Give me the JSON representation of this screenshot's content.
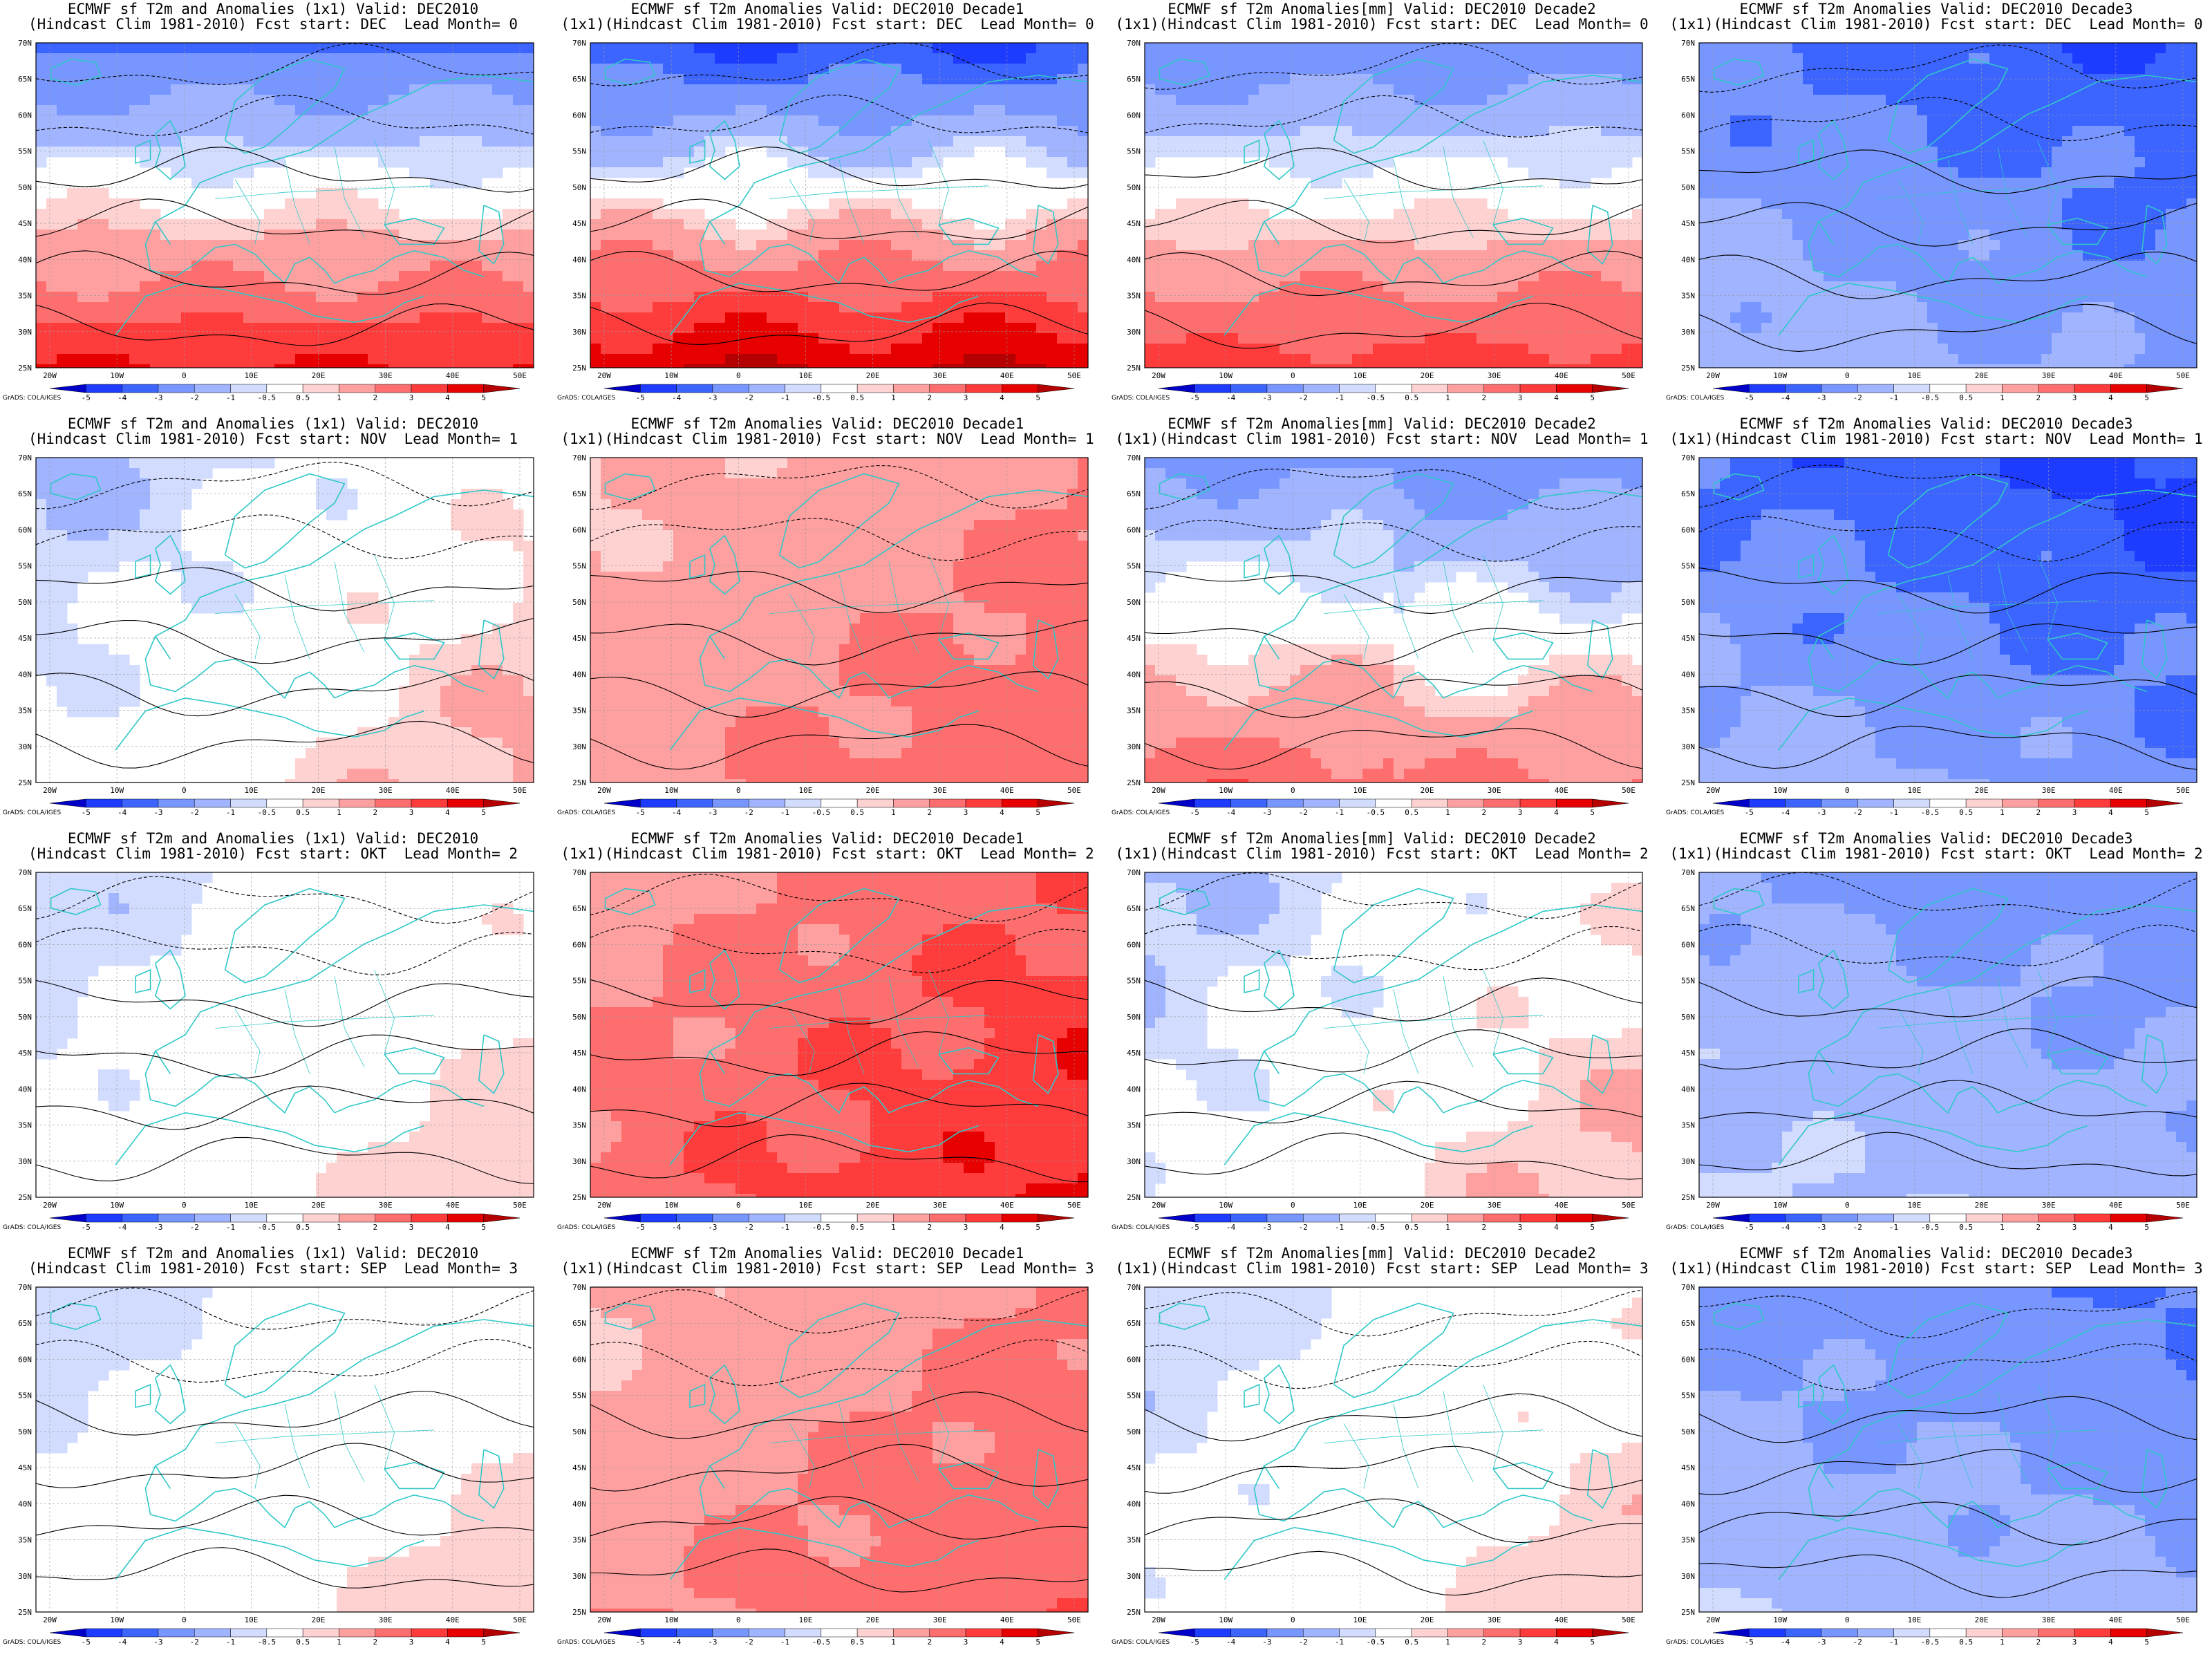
{
  "panels": [
    {
      "row": 0,
      "col": 0,
      "title1": "ECMWF sf T2m and Anomalies (1x1) Valid: DEC2010",
      "title2": "(Hindcast Clim 1981-2010) Fcst start: DEC  Lead Month= 0",
      "pattern": "cold-north-warm-south",
      "intensity": 0.8
    },
    {
      "row": 0,
      "col": 1,
      "title1": "ECMWF sf T2m Anomalies Valid: DEC2010 Decade1",
      "title2": "(1x1)(Hindcast Clim 1981-2010) Fcst start: DEC  Lead Month= 0",
      "pattern": "cold-north-warm-south",
      "intensity": 1.0
    },
    {
      "row": 0,
      "col": 2,
      "title1": "ECMWF sf T2m Anomalies[mm] Valid: DEC2010 Decade2",
      "title2": "(1x1)(Hindcast Clim 1981-2010) Fcst start: DEC  Lead Month= 0",
      "pattern": "cold-north-warm-south",
      "intensity": 0.7
    },
    {
      "row": 0,
      "col": 3,
      "title1": "ECMWF sf T2m Anomalies Valid: DEC2010 Decade3",
      "title2": "(1x1)(Hindcast Clim 1981-2010) Fcst start: DEC  Lead Month= 0",
      "pattern": "cold-all",
      "intensity": 0.9
    },
    {
      "row": 1,
      "col": 0,
      "title1": "ECMWF sf T2m and Anomalies (1x1) Valid: DEC2010",
      "title2": "(Hindcast Clim 1981-2010) Fcst start: NOV  Lead Month= 1",
      "pattern": "mild-mixed",
      "intensity": 0.5
    },
    {
      "row": 1,
      "col": 1,
      "title1": "ECMWF sf T2m Anomalies Valid: DEC2010 Decade1",
      "title2": "(1x1)(Hindcast Clim 1981-2010) Fcst start: NOV  Lead Month= 1",
      "pattern": "warm-all",
      "intensity": 0.55
    },
    {
      "row": 1,
      "col": 2,
      "title1": "ECMWF sf T2m Anomalies[mm] Valid: DEC2010 Decade2",
      "title2": "(1x1)(Hindcast Clim 1981-2010) Fcst start: NOV  Lead Month= 1",
      "pattern": "cold-northeast-warm-southeast",
      "intensity": 0.8
    },
    {
      "row": 1,
      "col": 3,
      "title1": "ECMWF sf T2m Anomalies Valid: DEC2010 Decade3",
      "title2": "(1x1)(Hindcast Clim 1981-2010) Fcst start: NOV  Lead Month= 1",
      "pattern": "cold-all",
      "intensity": 1.0
    },
    {
      "row": 2,
      "col": 0,
      "title1": "ECMWF sf T2m and Anomalies (1x1) Valid: DEC2010",
      "title2": "(Hindcast Clim 1981-2010) Fcst start: OKT  Lead Month= 2",
      "pattern": "mild-mixed",
      "intensity": 0.4
    },
    {
      "row": 2,
      "col": 1,
      "title1": "ECMWF sf T2m Anomalies Valid: DEC2010 Decade1",
      "title2": "(1x1)(Hindcast Clim 1981-2010) Fcst start: OKT  Lead Month= 2",
      "pattern": "warm-all",
      "intensity": 0.85
    },
    {
      "row": 2,
      "col": 2,
      "title1": "ECMWF sf T2m Anomalies[mm] Valid: DEC2010 Decade2",
      "title2": "(1x1)(Hindcast Clim 1981-2010) Fcst start: OKT  Lead Month= 2",
      "pattern": "mild-mixed",
      "intensity": 0.5
    },
    {
      "row": 2,
      "col": 3,
      "title1": "ECMWF sf T2m Anomalies Valid: DEC2010 Decade3",
      "title2": "(1x1)(Hindcast Clim 1981-2010) Fcst start: OKT  Lead Month= 2",
      "pattern": "cold-all",
      "intensity": 0.6
    },
    {
      "row": 3,
      "col": 0,
      "title1": "ECMWF sf T2m and Anomalies (1x1) Valid: DEC2010",
      "title2": "(Hindcast Clim 1981-2010) Fcst start: SEP  Lead Month= 3",
      "pattern": "mild-mixed",
      "intensity": 0.35
    },
    {
      "row": 3,
      "col": 1,
      "title1": "ECMWF sf T2m Anomalies Valid: DEC2010 Decade1",
      "title2": "(1x1)(Hindcast Clim 1981-2010) Fcst start: SEP  Lead Month= 3",
      "pattern": "warm-all",
      "intensity": 0.6
    },
    {
      "row": 3,
      "col": 2,
      "title1": "ECMWF sf T2m Anomalies[mm] Valid: DEC2010 Decade2",
      "title2": "(1x1)(Hindcast Clim 1981-2010) Fcst start: SEP  Lead Month= 3",
      "pattern": "mild-mixed",
      "intensity": 0.4
    },
    {
      "row": 3,
      "col": 3,
      "title1": "ECMWF sf T2m Anomalies Valid: DEC2010 Decade3",
      "title2": "(1x1)(Hindcast Clim 1981-2010) Fcst start: SEP  Lead Month= 3",
      "pattern": "cold-all",
      "intensity": 0.7
    }
  ],
  "lat_labels": [
    "70N",
    "65N",
    "60N",
    "55N",
    "50N",
    "45N",
    "40N",
    "35N",
    "30N",
    "25N"
  ],
  "lon_labels": [
    "20W",
    "10W",
    "0",
    "10E",
    "20E",
    "30E",
    "40E",
    "50E"
  ],
  "colorbar": {
    "ticks": [
      "-5",
      "-4",
      "-3",
      "-2",
      "-1",
      "-0.5",
      "0.5",
      "1",
      "2",
      "3",
      "4",
      "5"
    ],
    "colors": [
      "#0000c8",
      "#1e3cff",
      "#3c64ff",
      "#7896ff",
      "#a0b4ff",
      "#d2dcff",
      "#ffffff",
      "#ffd2d2",
      "#ffa0a0",
      "#ff6e6e",
      "#ff3c3c",
      "#e60000",
      "#b40000"
    ]
  },
  "credit": "GrADS: COLA/IGES",
  "colors": {
    "coast": "#30c8c8",
    "contour": "#000000"
  }
}
